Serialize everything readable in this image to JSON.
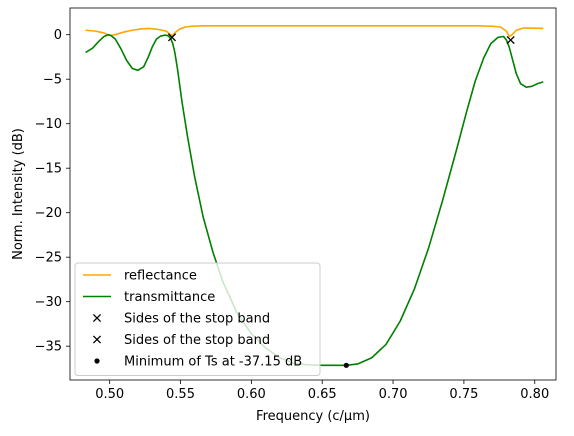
{
  "chart_data": {
    "type": "line",
    "xlabel": "Frequency (c/μm)",
    "ylabel": "Norm. Intensity (dB)",
    "xlim": [
      0.472,
      0.815
    ],
    "ylim": [
      -38.8,
      3.0
    ],
    "xticks": [
      0.5,
      0.55,
      0.6,
      0.65,
      0.7,
      0.75,
      0.8
    ],
    "xtick_labels": [
      "0.50",
      "0.55",
      "0.60",
      "0.65",
      "0.70",
      "0.75",
      "0.80"
    ],
    "yticks": [
      0,
      -5,
      -10,
      -15,
      -20,
      -25,
      -30,
      -35
    ],
    "ytick_labels": [
      "0",
      "−5",
      "−10",
      "−15",
      "−20",
      "−25",
      "−30",
      "−35"
    ],
    "grid": false,
    "legend_position": "lower-left",
    "series": [
      {
        "name": "reflectance",
        "color": "#ffa500",
        "style": "line",
        "x": [
          0.483,
          0.49,
          0.496,
          0.5,
          0.504,
          0.51,
          0.516,
          0.522,
          0.528,
          0.534,
          0.54,
          0.543,
          0.5445,
          0.546,
          0.549,
          0.553,
          0.558,
          0.565,
          0.58,
          0.6,
          0.62,
          0.64,
          0.66,
          0.68,
          0.7,
          0.72,
          0.74,
          0.76,
          0.77,
          0.776,
          0.78,
          0.782,
          0.784,
          0.787,
          0.792,
          0.798,
          0.806
        ],
        "y": [
          0.5,
          0.4,
          0.2,
          -0.1,
          0.0,
          0.3,
          0.5,
          0.65,
          0.7,
          0.6,
          0.4,
          0.0,
          -0.1,
          0.2,
          0.6,
          0.85,
          0.95,
          1.0,
          1.0,
          1.0,
          1.0,
          1.0,
          1.0,
          1.0,
          1.0,
          1.0,
          1.0,
          1.0,
          0.95,
          0.85,
          0.4,
          -0.2,
          0.0,
          0.5,
          0.75,
          0.75,
          0.7
        ]
      },
      {
        "name": "transmittance",
        "color": "#008000",
        "style": "line",
        "x": [
          0.483,
          0.488,
          0.492,
          0.496,
          0.499,
          0.501,
          0.504,
          0.508,
          0.512,
          0.516,
          0.52,
          0.524,
          0.527,
          0.53,
          0.533,
          0.536,
          0.539,
          0.541,
          0.543,
          0.5445,
          0.546,
          0.548,
          0.551,
          0.555,
          0.56,
          0.566,
          0.573,
          0.58,
          0.59,
          0.6,
          0.61,
          0.62,
          0.63,
          0.64,
          0.65,
          0.66,
          0.667,
          0.675,
          0.685,
          0.695,
          0.705,
          0.715,
          0.725,
          0.735,
          0.745,
          0.752,
          0.758,
          0.764,
          0.769,
          0.774,
          0.778,
          0.78,
          0.782,
          0.784,
          0.787,
          0.79,
          0.794,
          0.798,
          0.802,
          0.806
        ],
        "y": [
          -2.0,
          -1.5,
          -0.8,
          -0.2,
          0.0,
          -0.1,
          -0.5,
          -1.6,
          -2.9,
          -3.8,
          -4.0,
          -3.6,
          -2.6,
          -1.4,
          -0.5,
          -0.15,
          -0.05,
          -0.1,
          -0.4,
          -1.0,
          -2.0,
          -4.0,
          -7.5,
          -11.5,
          -16.0,
          -20.5,
          -24.5,
          -27.8,
          -31.3,
          -33.6,
          -35.2,
          -36.3,
          -36.9,
          -37.1,
          -37.15,
          -37.15,
          -37.15,
          -37.0,
          -36.3,
          -34.8,
          -32.2,
          -28.6,
          -24.0,
          -18.6,
          -12.8,
          -8.6,
          -5.2,
          -2.6,
          -1.0,
          -0.3,
          -0.2,
          -0.6,
          -1.4,
          -2.6,
          -4.4,
          -5.5,
          -5.9,
          -5.8,
          -5.5,
          -5.3
        ]
      },
      {
        "name": "Sides of the stop band",
        "color": "#000000",
        "style": "x-marker",
        "x": [
          0.544
        ],
        "y": [
          -0.3
        ]
      },
      {
        "name": "Sides of the stop band",
        "color": "#000000",
        "style": "x-marker",
        "x": [
          0.783
        ],
        "y": [
          -0.6
        ]
      },
      {
        "name": "Minimum of Ts at -37.15 dB",
        "color": "#000000",
        "style": "dot-marker",
        "x": [
          0.667
        ],
        "y": [
          -37.15
        ]
      }
    ]
  }
}
